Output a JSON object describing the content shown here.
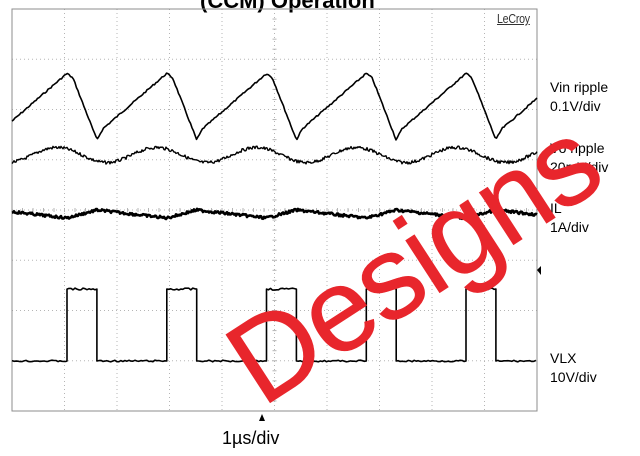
{
  "header": {
    "title_fragment": "(CCM) Operation",
    "brand": "LeCroy"
  },
  "watermark": {
    "text": "Designs",
    "color": "#e8262c"
  },
  "timebase": "1µs/div",
  "colors": {
    "trace": "#000000",
    "grid": "#b5b5b5",
    "frame": "#8c8c8c"
  },
  "chart_data": {
    "type": "line",
    "title": "(CCM) Operation",
    "grid": true,
    "divisions": {
      "horizontal": 10,
      "vertical": 8
    },
    "time_per_div": "1µs/div",
    "period_div": 1.9,
    "series": [
      {
        "name": "Vin ripple",
        "scale": "0.1V/div",
        "waveform": "sawtooth with dip after switching edge",
        "peak_to_peak_div": 1.05
      },
      {
        "name": "Vo ripple",
        "scale": "20mV/div",
        "waveform": "small sinusoidal ripple with noise",
        "peak_to_peak_div": 0.3
      },
      {
        "name": "IL",
        "scale": "1A/div",
        "waveform": "triangular ripple",
        "peak_to_peak_div": 0.12
      },
      {
        "name": "VLX",
        "scale": "10V/div",
        "waveform": "square switching pulse",
        "amplitude_div": 1.1,
        "duty": 0.3
      }
    ]
  },
  "labels": [
    {
      "line1": "Vin ripple",
      "line2": "0.1V/div"
    },
    {
      "line1": "Vo ripple",
      "line2": "20mV/div"
    },
    {
      "line1": "IL",
      "line2": "1A/div"
    },
    {
      "line1": "VLX",
      "line2": "10V/div"
    }
  ]
}
